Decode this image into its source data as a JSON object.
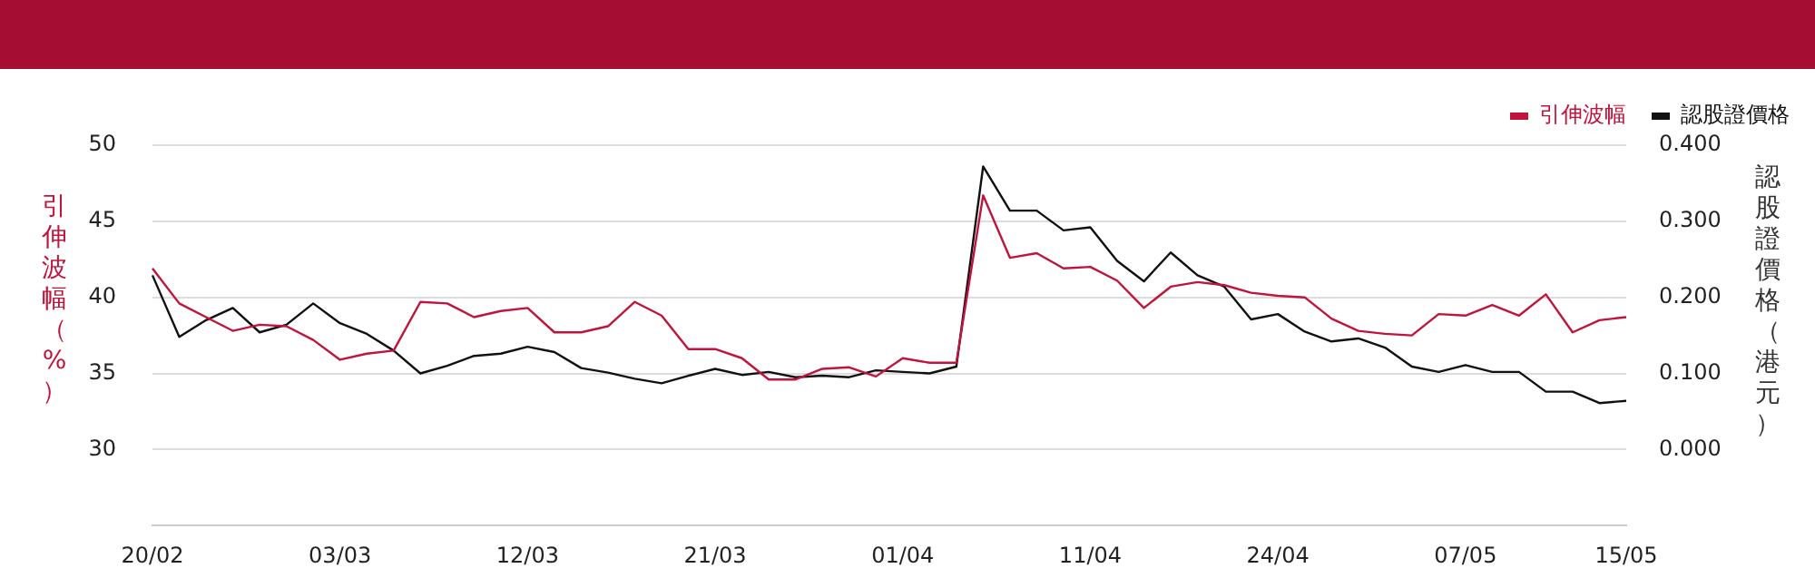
{
  "chart_data": {
    "type": "line",
    "ylabel": "引伸波幅（%）",
    "y2label": "認股證價格（港元）",
    "categories": [
      "20/02",
      null,
      null,
      null,
      null,
      null,
      null,
      "03/03",
      null,
      null,
      null,
      null,
      null,
      null,
      "12/03",
      null,
      null,
      null,
      null,
      null,
      null,
      "21/03",
      null,
      null,
      null,
      null,
      null,
      null,
      "01/04",
      null,
      null,
      null,
      null,
      null,
      null,
      "11/04",
      null,
      null,
      null,
      null,
      null,
      null,
      "24/04",
      null,
      null,
      null,
      null,
      null,
      null,
      "07/05",
      null,
      null,
      null,
      null,
      null,
      "15/05"
    ],
    "series": [
      {
        "name": "引伸波幅",
        "color": "#c0143c",
        "axis": "y",
        "values": [
          41.9,
          39.6,
          38.7,
          37.8,
          38.2,
          38.1,
          37.2,
          35.9,
          36.3,
          36.5,
          39.7,
          39.6,
          38.7,
          39.1,
          39.3,
          37.7,
          37.7,
          38.1,
          39.7,
          38.8,
          36.6,
          36.6,
          36.0,
          34.6,
          34.6,
          35.3,
          35.4,
          34.8,
          36.0,
          35.7,
          35.7,
          46.7,
          42.6,
          42.9,
          41.9,
          42.0,
          41.1,
          39.3,
          40.7,
          41.0,
          40.8,
          40.3,
          40.1,
          40.0,
          38.6,
          37.8,
          37.6,
          37.5,
          38.9,
          38.8,
          39.5,
          38.8,
          40.2,
          37.7,
          38.5,
          38.7
        ]
      },
      {
        "name": "認股證價格",
        "color": "#111111",
        "axis": "y2",
        "values": [
          0.229,
          0.148,
          0.17,
          0.186,
          0.154,
          0.164,
          0.192,
          0.166,
          0.152,
          0.13,
          0.1,
          0.11,
          0.123,
          0.126,
          0.135,
          0.128,
          0.107,
          0.101,
          0.093,
          0.087,
          0.097,
          0.106,
          0.098,
          0.102,
          0.095,
          0.097,
          0.095,
          0.104,
          0.102,
          0.1,
          0.109,
          0.372,
          0.314,
          0.314,
          0.288,
          0.292,
          0.248,
          0.221,
          0.259,
          0.229,
          0.214,
          0.171,
          0.178,
          0.155,
          0.142,
          0.146,
          0.134,
          0.109,
          0.102,
          0.111,
          0.102,
          0.102,
          0.076,
          0.076,
          0.061,
          0.064
        ]
      }
    ],
    "ylim": [
      25,
      50
    ],
    "yticks": [
      30,
      35,
      40,
      45,
      50
    ],
    "y2lim": [
      -0.1,
      0.4
    ],
    "y2ticks": [
      {
        "value": 0,
        "label": "0.000"
      },
      {
        "value": 0.1,
        "label": "0.100"
      },
      {
        "value": 0.2,
        "label": "0.200"
      },
      {
        "value": 0.3,
        "label": "0.300"
      },
      {
        "value": 0.4,
        "label": "0.400"
      }
    ],
    "grid": "y",
    "legend": "top right",
    "marker": "none"
  }
}
